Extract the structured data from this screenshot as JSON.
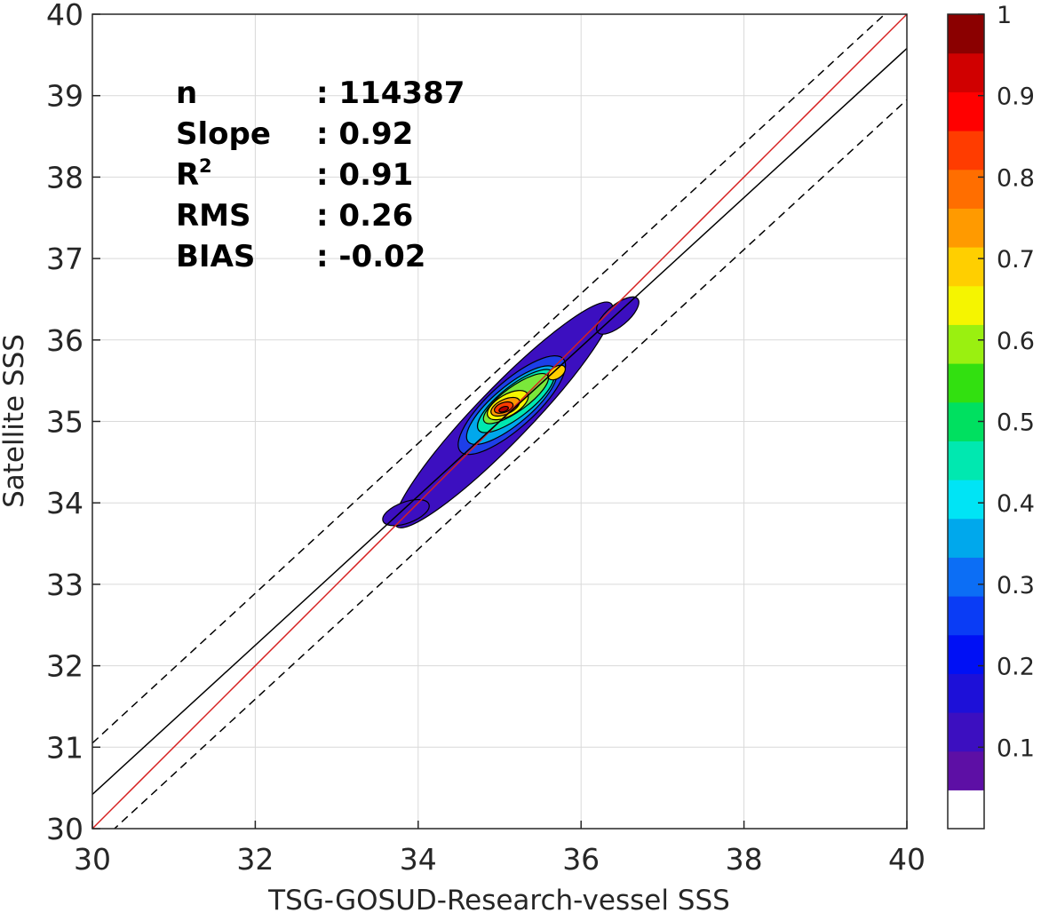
{
  "chart_data": {
    "type": "contour",
    "xlabel": "TSG-GOSUD-Research-vessel SSS",
    "ylabel": "Satellite SSS",
    "xlim": [
      30,
      40
    ],
    "ylim": [
      30,
      40
    ],
    "xticks": [
      "30",
      "32",
      "34",
      "36",
      "38",
      "40"
    ],
    "yticks": [
      "30",
      "31",
      "32",
      "33",
      "34",
      "35",
      "36",
      "37",
      "38",
      "39",
      "40"
    ],
    "grid": true,
    "lines": [
      {
        "name": "identity",
        "color": "#d62020",
        "style": "solid",
        "points": [
          [
            30,
            30
          ],
          [
            40,
            40
          ]
        ]
      },
      {
        "name": "regression",
        "color": "#000000",
        "style": "solid",
        "points": [
          [
            30,
            30.42
          ],
          [
            40,
            39.58
          ]
        ]
      },
      {
        "name": "upper-bound",
        "color": "#000000",
        "style": "dashed",
        "points": [
          [
            30,
            31.05
          ],
          [
            40,
            40.25
          ]
        ]
      },
      {
        "name": "lower-bound",
        "color": "#000000",
        "style": "dashed",
        "points": [
          [
            30,
            29.75
          ],
          [
            40,
            38.95
          ]
        ]
      }
    ],
    "stats": [
      {
        "label": "n",
        "value": ": 114387"
      },
      {
        "label": "Slope",
        "value": ": 0.92"
      },
      {
        "label": "R",
        "sup": "2",
        "value": ": 0.91"
      },
      {
        "label": "RMS",
        "value": ": 0.26"
      },
      {
        "label": "BIAS",
        "value": ": -0.02"
      }
    ],
    "contours": [
      {
        "level": 0.05,
        "color": "#3c0fc0",
        "center": [
          35.05,
          35.08
        ],
        "rx": 1.9,
        "ry": 0.33,
        "angle": 46
      },
      {
        "level": 0.05,
        "color": "#3c0fc0",
        "center": [
          33.85,
          33.88
        ],
        "rx": 0.3,
        "ry": 0.13,
        "angle": 20
      },
      {
        "level": 0.05,
        "color": "#3c0fc0",
        "center": [
          36.45,
          36.3
        ],
        "rx": 0.32,
        "ry": 0.13,
        "angle": 40
      },
      {
        "level": 0.15,
        "color": "#1d3fe8",
        "center": [
          35.15,
          35.2
        ],
        "rx": 0.85,
        "ry": 0.28,
        "angle": 42
      },
      {
        "level": 0.3,
        "color": "#00a8ec",
        "center": [
          35.15,
          35.2
        ],
        "rx": 0.7,
        "ry": 0.23,
        "angle": 40
      },
      {
        "level": 0.45,
        "color": "#00e8b0",
        "center": [
          35.2,
          35.25
        ],
        "rx": 0.58,
        "ry": 0.19,
        "angle": 38
      },
      {
        "level": 0.55,
        "color": "#7ae83a",
        "center": [
          35.2,
          35.28
        ],
        "rx": 0.48,
        "ry": 0.15,
        "angle": 36
      },
      {
        "level": 0.65,
        "color": "#f5f500",
        "center": [
          35.1,
          35.2
        ],
        "rx": 0.28,
        "ry": 0.13,
        "angle": 30
      },
      {
        "level": 0.65,
        "color": "#ffcf00",
        "center": [
          35.7,
          35.6
        ],
        "rx": 0.12,
        "ry": 0.07,
        "angle": 35
      },
      {
        "level": 0.75,
        "color": "#ff9a00",
        "center": [
          35.07,
          35.18
        ],
        "rx": 0.19,
        "ry": 0.09,
        "angle": 25
      },
      {
        "level": 0.85,
        "color": "#ff3c00",
        "center": [
          35.05,
          35.17
        ],
        "rx": 0.12,
        "ry": 0.06,
        "angle": 20
      },
      {
        "level": 0.95,
        "color": "#b30000",
        "center": [
          35.05,
          35.15
        ],
        "rx": 0.06,
        "ry": 0.03,
        "angle": 20
      }
    ],
    "colorbar": {
      "ticks": [
        "0.1",
        "0.2",
        "0.3",
        "0.4",
        "0.5",
        "0.6",
        "0.7",
        "0.8",
        "0.9",
        "1"
      ],
      "colors": [
        "#ffffff",
        "#5d0fa5",
        "#3c0fc0",
        "#1d10d8",
        "#0010f5",
        "#0a3cf5",
        "#0c6ef5",
        "#00a8ec",
        "#00e4f5",
        "#00e8b0",
        "#00e060",
        "#32e010",
        "#9af010",
        "#f5f500",
        "#ffcf00",
        "#ff9a00",
        "#ff6e00",
        "#ff3c00",
        "#ff0000",
        "#d00000",
        "#8b0000"
      ]
    }
  }
}
